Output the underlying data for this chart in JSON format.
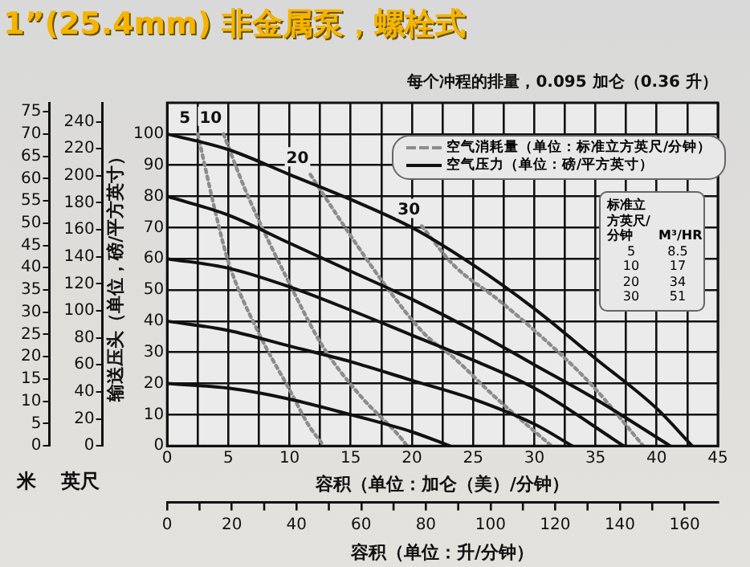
{
  "chart_data": {
    "type": "line",
    "title": "1”(25.4mm) 非金属泵，螺栓式",
    "annotations": [
      "每个冲程的排量，0.095 加仑（0.36 升）",
      "空气消耗量（单位：标准立方英尺/分钟）",
      "空气压力（单位：磅/平方英寸）",
      "标准立方英尺/分钟",
      "M³/HR",
      "5",
      "8.5",
      "10",
      "17",
      "20",
      "34",
      "30",
      "51"
    ],
    "xlabel": "容积（单位：加仑（美）/分钟）",
    "x2label": "容积（单位：升/分钟）",
    "ylabel": "输送压头（单位，磅/平方英寸）",
    "y2label": "米",
    "y3label": "英尺",
    "xlim": [
      0,
      45
    ],
    "xticks": [
      0,
      {
        "value": 2.5,
        "label": null
      },
      5,
      {
        "value": 7.5,
        "label": null
      },
      10,
      {
        "value": 12.5,
        "label": null
      },
      15,
      {
        "value": 17.5,
        "label": null
      },
      20,
      {
        "value": 22.5,
        "label": null
      },
      25,
      {
        "value": 27.5,
        "label": null
      },
      30,
      {
        "value": 32.5,
        "label": null
      },
      35,
      {
        "value": 37.5,
        "label": null
      },
      40,
      {
        "value": 42.5,
        "label": null
      },
      45
    ],
    "ylim": [
      0,
      110
    ],
    "yticks": [
      0,
      10,
      20,
      30,
      40,
      50,
      60,
      70,
      80,
      90,
      100
    ],
    "y2lim": [
      0,
      77
    ],
    "y2ticks": [
      0,
      5,
      10,
      15,
      20,
      25,
      30,
      35,
      40,
      45,
      50,
      55,
      60,
      65,
      70,
      75
    ],
    "y3lim": [
      0,
      254
    ],
    "y3ticks": [
      0,
      20,
      40,
      60,
      80,
      100,
      120,
      140,
      160,
      180,
      200,
      220,
      240
    ],
    "x2lim": [
      0,
      170.3
    ],
    "x2ticks": [
      0,
      20,
      40,
      60,
      80,
      100,
      120,
      140,
      160
    ],
    "grid": true,
    "marker": "none",
    "series": [
      {
        "color": "#111111",
        "line_style": "solid",
        "x": [
          0,
          5,
          10,
          15,
          20,
          25,
          30,
          35,
          40,
          42.9
        ],
        "values": [
          100,
          95,
          87,
          79,
          70,
          58,
          44,
          28,
          12,
          0
        ]
      },
      {
        "color": "#111111",
        "line_style": "solid",
        "x": [
          0,
          5,
          10,
          15,
          20,
          25,
          30,
          35,
          41.1
        ],
        "values": [
          80,
          74,
          65,
          56,
          47,
          37,
          26,
          15,
          0
        ]
      },
      {
        "color": "#111111",
        "line_style": "solid",
        "x": [
          0,
          5,
          10,
          15,
          20,
          25,
          30,
          37.3
        ],
        "values": [
          60,
          57,
          51,
          43.5,
          35.5,
          27.5,
          18.5,
          0
        ]
      },
      {
        "color": "#111111",
        "line_style": "solid",
        "x": [
          0,
          5,
          10,
          15,
          20,
          25,
          30,
          33.1
        ],
        "values": [
          40,
          37,
          32,
          27,
          21,
          15,
          7,
          0
        ]
      },
      {
        "color": "#111111",
        "line_style": "solid",
        "x": [
          0,
          5,
          10,
          15,
          20,
          23.1
        ],
        "values": [
          20,
          18.5,
          15,
          10,
          4.5,
          0
        ]
      },
      {
        "name": "5",
        "color": "#8c8c8c",
        "line_style": "dotted",
        "x": [
          2.5,
          4,
          5,
          7.5,
          10,
          11.5,
          12.8
        ],
        "values": [
          100,
          74,
          59,
          36,
          18,
          7,
          0
        ]
      },
      {
        "name": "10",
        "color": "#8c8c8c",
        "line_style": "dotted",
        "x": [
          4.6,
          6.5,
          10,
          12.7,
          15.8,
          19,
          19.6
        ],
        "values": [
          100,
          81,
          52,
          32,
          16,
          3,
          0
        ]
      },
      {
        "name": "20",
        "color": "#8c8c8c",
        "line_style": "dotted",
        "x": [
          11.7,
          12.7,
          15.4,
          18.1,
          21,
          23.5,
          26.7,
          31.4
        ],
        "values": [
          87,
          81,
          65,
          50,
          36,
          28,
          16,
          0
        ]
      },
      {
        "name": "30",
        "color": "#8c8c8c",
        "line_style": "dotted",
        "x": [
          20.8,
          23.4,
          27,
          30.3,
          34.7,
          38.9
        ],
        "values": [
          70.5,
          58,
          47,
          36,
          19.5,
          0
        ]
      }
    ]
  }
}
